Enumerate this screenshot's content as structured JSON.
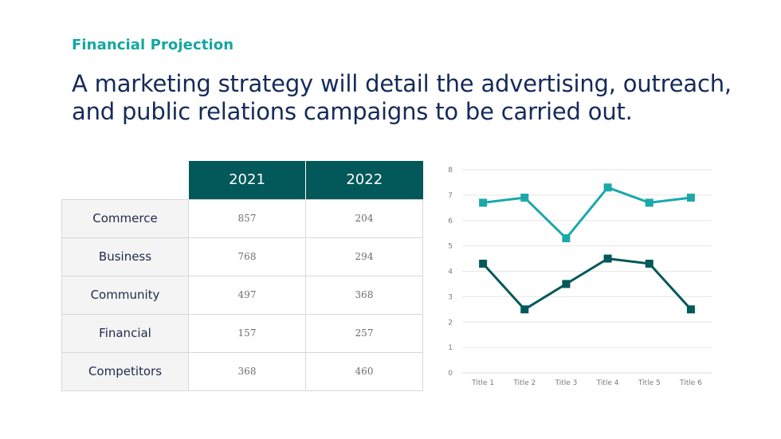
{
  "header": {
    "eyebrow": "Financial Projection",
    "headline": "A marketing strategy will detail the advertising, outreach, and public relations campaigns to be carried out."
  },
  "table": {
    "columns": [
      "2021",
      "2022"
    ],
    "rows": [
      {
        "label": "Commerce",
        "values": [
          "857",
          "204"
        ]
      },
      {
        "label": "Business",
        "values": [
          "768",
          "294"
        ]
      },
      {
        "label": "Community",
        "values": [
          "497",
          "368"
        ]
      },
      {
        "label": "Financial",
        "values": [
          "157",
          "257"
        ]
      },
      {
        "label": "Competitors",
        "values": [
          "368",
          "460"
        ]
      }
    ]
  },
  "colors": {
    "accent": "#14A6A0",
    "headline": "#152A59",
    "table_header": "#03585A",
    "series_1": "#1BA8AA",
    "series_2": "#03585A"
  },
  "chart_data": {
    "type": "line",
    "title": "",
    "xlabel": "",
    "ylabel": "",
    "categories": [
      "Title 1",
      "Title 2",
      "Title 3",
      "Title 4",
      "Title 5",
      "Title 6"
    ],
    "ylim": [
      0,
      8
    ],
    "yticks": [
      0,
      1,
      2,
      3,
      4,
      5,
      6,
      7,
      8
    ],
    "grid": true,
    "legend": "none",
    "marker": "square",
    "series": [
      {
        "values": [
          6.7,
          6.9,
          5.3,
          7.3,
          6.7,
          6.9
        ],
        "color": "#1BA8AA"
      },
      {
        "values": [
          4.3,
          2.5,
          3.5,
          4.5,
          4.3,
          2.5
        ],
        "color": "#03585A"
      }
    ]
  }
}
